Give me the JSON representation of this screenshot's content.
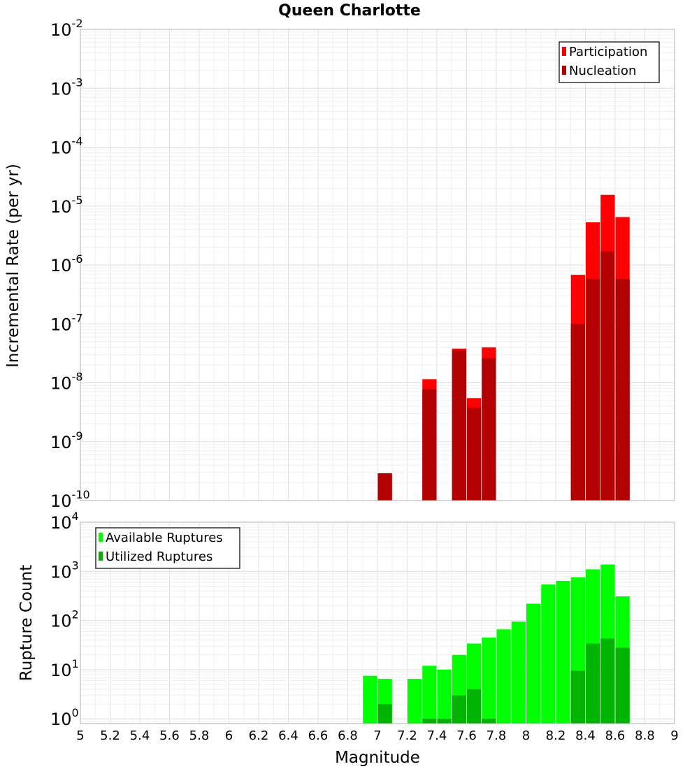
{
  "chart_data": [
    {
      "type": "bar",
      "title": "Queen Charlotte",
      "xlabel": "",
      "ylabel": "Incremental Rate (per yr)",
      "y_scale": "log",
      "ylim": [
        1e-10,
        0.01
      ],
      "xlim": [
        5,
        9
      ],
      "bar_width": 0.1,
      "grid": true,
      "legend_position": "top-right",
      "y_ticks": [
        {
          "base": "10",
          "exp": "-10",
          "value": 1e-10
        },
        {
          "base": "10",
          "exp": "-9",
          "value": 1e-09
        },
        {
          "base": "10",
          "exp": "-8",
          "value": 1e-08
        },
        {
          "base": "10",
          "exp": "-7",
          "value": 1e-07
        },
        {
          "base": "10",
          "exp": "-6",
          "value": 1e-06
        },
        {
          "base": "10",
          "exp": "-5",
          "value": 1e-05
        },
        {
          "base": "10",
          "exp": "-4",
          "value": 0.0001
        },
        {
          "base": "10",
          "exp": "-3",
          "value": 0.001
        },
        {
          "base": "10",
          "exp": "-2",
          "value": 0.01
        }
      ],
      "series": [
        {
          "name": "Participation",
          "color": "#ff0000",
          "points": [
            {
              "x": 7.05,
              "y": 2.9e-10
            },
            {
              "x": 7.35,
              "y": 1.15e-08
            },
            {
              "x": 7.55,
              "y": 3.8e-08
            },
            {
              "x": 7.65,
              "y": 5.5e-09
            },
            {
              "x": 7.75,
              "y": 4e-08
            },
            {
              "x": 8.35,
              "y": 6.8e-07
            },
            {
              "x": 8.45,
              "y": 5.3e-06
            },
            {
              "x": 8.55,
              "y": 1.55e-05
            },
            {
              "x": 8.65,
              "y": 6.5e-06
            }
          ]
        },
        {
          "name": "Nucleation",
          "color": "#b30000",
          "points": [
            {
              "x": 7.05,
              "y": 2.9e-10
            },
            {
              "x": 7.35,
              "y": 7.8e-09
            },
            {
              "x": 7.55,
              "y": 3.5e-08
            },
            {
              "x": 7.65,
              "y": 3.8e-09
            },
            {
              "x": 7.75,
              "y": 2.6e-08
            },
            {
              "x": 8.35,
              "y": 1e-07
            },
            {
              "x": 8.45,
              "y": 5.8e-07
            },
            {
              "x": 8.55,
              "y": 1.7e-06
            },
            {
              "x": 8.65,
              "y": 5.8e-07
            }
          ]
        }
      ]
    },
    {
      "type": "bar",
      "title": "",
      "xlabel": "Magnitude",
      "ylabel": "Rupture Count",
      "y_scale": "log",
      "ylim": [
        0.8,
        10000
      ],
      "xlim": [
        5,
        9
      ],
      "bar_width": 0.1,
      "grid": true,
      "legend_position": "top-left",
      "x_ticks": [
        "5",
        "5.2",
        "5.4",
        "5.6",
        "5.8",
        "6",
        "6.2",
        "6.4",
        "6.6",
        "6.8",
        "7",
        "7.2",
        "7.4",
        "7.6",
        "7.8",
        "8",
        "8.2",
        "8.4",
        "8.6",
        "8.8",
        "9"
      ],
      "y_ticks": [
        {
          "base": "10",
          "exp": "0",
          "value": 1
        },
        {
          "base": "10",
          "exp": "1",
          "value": 10
        },
        {
          "base": "10",
          "exp": "2",
          "value": 100
        },
        {
          "base": "10",
          "exp": "3",
          "value": 1000
        },
        {
          "base": "10",
          "exp": "4",
          "value": 10000
        }
      ],
      "series": [
        {
          "name": "Available Ruptures",
          "color": "#00ff00",
          "points": [
            {
              "x": 6.95,
              "y": 7.5
            },
            {
              "x": 7.05,
              "y": 6.5
            },
            {
              "x": 7.25,
              "y": 6.5
            },
            {
              "x": 7.35,
              "y": 12
            },
            {
              "x": 7.45,
              "y": 10
            },
            {
              "x": 7.55,
              "y": 20
            },
            {
              "x": 7.65,
              "y": 34
            },
            {
              "x": 7.75,
              "y": 45
            },
            {
              "x": 7.85,
              "y": 66
            },
            {
              "x": 7.95,
              "y": 95
            },
            {
              "x": 8.05,
              "y": 220
            },
            {
              "x": 8.15,
              "y": 540
            },
            {
              "x": 8.25,
              "y": 640
            },
            {
              "x": 8.35,
              "y": 760
            },
            {
              "x": 8.45,
              "y": 1100
            },
            {
              "x": 8.55,
              "y": 1380
            },
            {
              "x": 8.65,
              "y": 310
            }
          ]
        },
        {
          "name": "Utilized Ruptures",
          "color": "#00b300",
          "points": [
            {
              "x": 7.05,
              "y": 2
            },
            {
              "x": 7.35,
              "y": 1
            },
            {
              "x": 7.45,
              "y": 1
            },
            {
              "x": 7.55,
              "y": 3
            },
            {
              "x": 7.65,
              "y": 4
            },
            {
              "x": 7.75,
              "y": 1
            },
            {
              "x": 8.35,
              "y": 9.5
            },
            {
              "x": 8.45,
              "y": 34
            },
            {
              "x": 8.55,
              "y": 43
            },
            {
              "x": 8.65,
              "y": 28
            }
          ]
        }
      ]
    }
  ]
}
